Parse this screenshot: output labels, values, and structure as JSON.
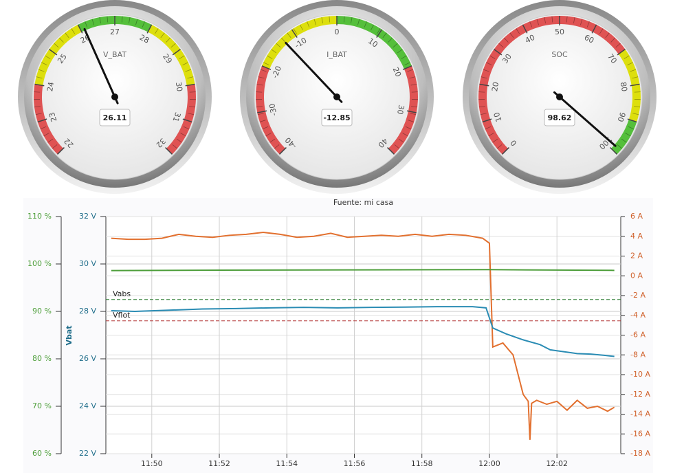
{
  "chart_data": [
    {
      "type": "gauge",
      "label": "V_BAT",
      "value": 26.11,
      "min": 22,
      "max": 32,
      "ticks": [
        22,
        23,
        24,
        25,
        26,
        27,
        28,
        29,
        30,
        31,
        32
      ],
      "bands": [
        {
          "from": 22,
          "to": 24,
          "color": "#df5353"
        },
        {
          "from": 24,
          "to": 26,
          "color": "#dddf0d"
        },
        {
          "from": 26,
          "to": 28,
          "color": "#55bf3b"
        },
        {
          "from": 28,
          "to": 30,
          "color": "#dddf0d"
        },
        {
          "from": 30,
          "to": 32,
          "color": "#df5353"
        }
      ]
    },
    {
      "type": "gauge",
      "label": "I_BAT",
      "value": -12.85,
      "min": -40,
      "max": 40,
      "ticks": [
        -40,
        -30,
        -20,
        -10,
        0,
        10,
        20,
        30,
        40
      ],
      "bands": [
        {
          "from": -40,
          "to": -20,
          "color": "#df5353"
        },
        {
          "from": -20,
          "to": 0,
          "color": "#dddf0d"
        },
        {
          "from": 0,
          "to": 20,
          "color": "#55bf3b"
        },
        {
          "from": 20,
          "to": 40,
          "color": "#df5353"
        }
      ]
    },
    {
      "type": "gauge",
      "label": "SOC",
      "value": 98.62,
      "min": 0,
      "max": 100,
      "ticks": [
        0,
        10,
        20,
        30,
        40,
        50,
        60,
        70,
        80,
        90,
        100
      ],
      "bands": [
        {
          "from": 0,
          "to": 70,
          "color": "#df5353"
        },
        {
          "from": 70,
          "to": 90,
          "color": "#dddf0d"
        },
        {
          "from": 90,
          "to": 100,
          "color": "#55bf3b"
        }
      ]
    },
    {
      "type": "line",
      "title": "Fuente: mi casa",
      "ylabel": "Vbat",
      "grid": true,
      "xlim": [
        708.64,
        723.89
      ],
      "xticks": [
        {
          "value": 710,
          "label": "11:50"
        },
        {
          "value": 712,
          "label": "11:52"
        },
        {
          "value": 714,
          "label": "11:54"
        },
        {
          "value": 716,
          "label": "11:56"
        },
        {
          "value": 718,
          "label": "11:58"
        },
        {
          "value": 720,
          "label": "12:00"
        },
        {
          "value": 722,
          "label": "12:02"
        }
      ],
      "ylim": [
        22,
        32
      ],
      "yticks": [
        {
          "value": 22,
          "label": "22 V"
        },
        {
          "value": 24,
          "label": "24 V"
        },
        {
          "value": 26,
          "label": "26 V"
        },
        {
          "value": 28,
          "label": "28 V"
        },
        {
          "value": 30,
          "label": "30 V"
        },
        {
          "value": 32,
          "label": "32 V"
        }
      ],
      "y2lim": [
        -18,
        6
      ],
      "y2ticks": [
        {
          "value": -18,
          "label": "-18 A"
        },
        {
          "value": -16,
          "label": "-16 A"
        },
        {
          "value": -14,
          "label": "-14 A"
        },
        {
          "value": -12,
          "label": "-12 A"
        },
        {
          "value": -10,
          "label": "-10 A"
        },
        {
          "value": -8,
          "label": "-8 A"
        },
        {
          "value": -6,
          "label": "-6 A"
        },
        {
          "value": -4,
          "label": "-4 A"
        },
        {
          "value": -2,
          "label": "-2 A"
        },
        {
          "value": 0,
          "label": "0 A"
        },
        {
          "value": 2,
          "label": "2 A"
        },
        {
          "value": 4,
          "label": "4 A"
        },
        {
          "value": 6,
          "label": "6 A"
        }
      ],
      "y3lim": [
        60,
        110
      ],
      "y3ticks": [
        {
          "value": 60,
          "label": "60 %"
        },
        {
          "value": 70,
          "label": "70 %"
        },
        {
          "value": 80,
          "label": "80 %"
        },
        {
          "value": 90,
          "label": "90 %"
        },
        {
          "value": 100,
          "label": "100 %"
        },
        {
          "value": 110,
          "label": "110 %"
        }
      ],
      "plot_lines": [
        {
          "label": "Vabs",
          "value": 28.5,
          "color": "#2e7d32"
        },
        {
          "label": "Vflot",
          "value": 27.6,
          "color": "#b03030"
        }
      ],
      "series": [
        {
          "color": "#e2702f",
          "axis": "y2",
          "x": [
            708.8,
            709.3,
            709.8,
            710.3,
            710.8,
            711.3,
            711.8,
            712.3,
            712.8,
            713.3,
            713.8,
            714.3,
            714.8,
            715.3,
            715.8,
            716.3,
            716.8,
            717.3,
            717.8,
            718.3,
            718.8,
            719.3,
            719.8,
            720.0,
            720.1,
            720.4,
            720.7,
            721.0,
            721.15,
            721.2,
            721.25,
            721.4,
            721.7,
            722.0,
            722.3,
            722.6,
            722.9,
            723.2,
            723.5,
            723.7
          ],
          "values": [
            3.8,
            3.7,
            3.7,
            3.8,
            4.2,
            4.0,
            3.9,
            4.1,
            4.2,
            4.4,
            4.2,
            3.9,
            4.0,
            4.3,
            3.9,
            4.0,
            4.1,
            4.0,
            4.2,
            4.0,
            4.2,
            4.1,
            3.8,
            3.3,
            -7.2,
            -6.8,
            -8.0,
            -12.0,
            -12.7,
            -16.6,
            -12.9,
            -12.6,
            -13.0,
            -12.7,
            -13.6,
            -12.6,
            -13.4,
            -13.2,
            -13.7,
            -13.3
          ]
        },
        {
          "color": "#2a8cb4",
          "axis": "y",
          "x": [
            708.8,
            709.5,
            710.5,
            711.5,
            712.5,
            713.5,
            714.5,
            715.5,
            716.5,
            717.5,
            718.5,
            719.5,
            719.9,
            720.1,
            720.5,
            721.0,
            721.5,
            721.8,
            722.2,
            722.6,
            723.0,
            723.4,
            723.7
          ],
          "values": [
            28.03,
            28.0,
            28.05,
            28.1,
            28.12,
            28.15,
            28.17,
            28.15,
            28.17,
            28.18,
            28.2,
            28.2,
            28.15,
            27.3,
            27.05,
            26.8,
            26.6,
            26.38,
            26.3,
            26.22,
            26.2,
            26.15,
            26.1
          ]
        },
        {
          "color": "#4d9e3a",
          "axis": "y3",
          "x": [
            708.8,
            712.0,
            716.0,
            720.0,
            723.7
          ],
          "values": [
            98.6,
            98.7,
            98.75,
            98.8,
            98.65
          ]
        }
      ]
    }
  ]
}
